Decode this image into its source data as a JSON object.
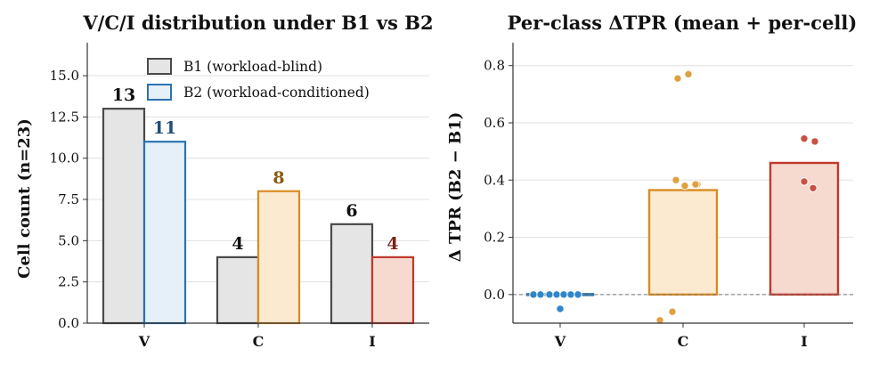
{
  "chart_data": [
    {
      "type": "bar",
      "title": "V/C/I distribution under B1 vs B2",
      "ylabel": "Cell count (n=23)",
      "xlabel": "",
      "categories": [
        "V",
        "C",
        "I"
      ],
      "ylim": [
        0,
        17
      ],
      "yticks": [
        "0.0",
        "2.5",
        "5.0",
        "7.5",
        "10.0",
        "12.5",
        "15.0"
      ],
      "grid": "y",
      "legend_position": "top-center",
      "series": [
        {
          "name": "B1 (workload-blind)",
          "values": [
            13,
            4,
            6
          ],
          "value_labels": [
            "13",
            "4",
            "6"
          ]
        },
        {
          "name": "B2 (workload-conditioned)",
          "values": [
            11,
            8,
            4
          ],
          "value_labels": [
            "11",
            "8",
            "4"
          ]
        }
      ],
      "colors": {
        "b1_fill": "#e5e5e5",
        "b1_edge": "#4a4a4a",
        "b1_label": "#111111",
        "b2_fill": [
          "#e6f0f8",
          "#fbe9d0",
          "#f6d9cf"
        ],
        "b2_edge": [
          "#2b73b0",
          "#d98c23",
          "#c0392b"
        ],
        "b2_label": [
          "#1f4e79",
          "#8a5a12",
          "#7b2418"
        ]
      }
    },
    {
      "type": "bar",
      "title": "Per-class ΔTPR (mean + per-cell)",
      "ylabel": "Δ TPR (B2 − B1)",
      "xlabel": "",
      "categories": [
        "V",
        "C",
        "I"
      ],
      "ylim": [
        -0.1,
        0.88
      ],
      "yticks": [
        "0.0",
        "0.2",
        "0.4",
        "0.6",
        "0.8"
      ],
      "grid": "y",
      "reference_line": 0,
      "mean_values": [
        0.0,
        0.365,
        0.46
      ],
      "points": [
        [
          0.0,
          0.0,
          0.0,
          0.0,
          0.0,
          0.0,
          0.0,
          -0.05
        ],
        [
          0.755,
          0.77,
          0.4,
          0.385,
          0.38,
          0.385,
          -0.06,
          -0.09
        ],
        [
          0.545,
          0.535,
          0.395,
          0.372
        ]
      ],
      "colors": {
        "fill": [
          "#d6e6f3",
          "#fbe9d0",
          "#f6d9cf"
        ],
        "edge": [
          "#2b73b0",
          "#d98c23",
          "#c0392b"
        ],
        "point": [
          "#2f86c8",
          "#e0a040",
          "#c85040"
        ]
      }
    }
  ]
}
